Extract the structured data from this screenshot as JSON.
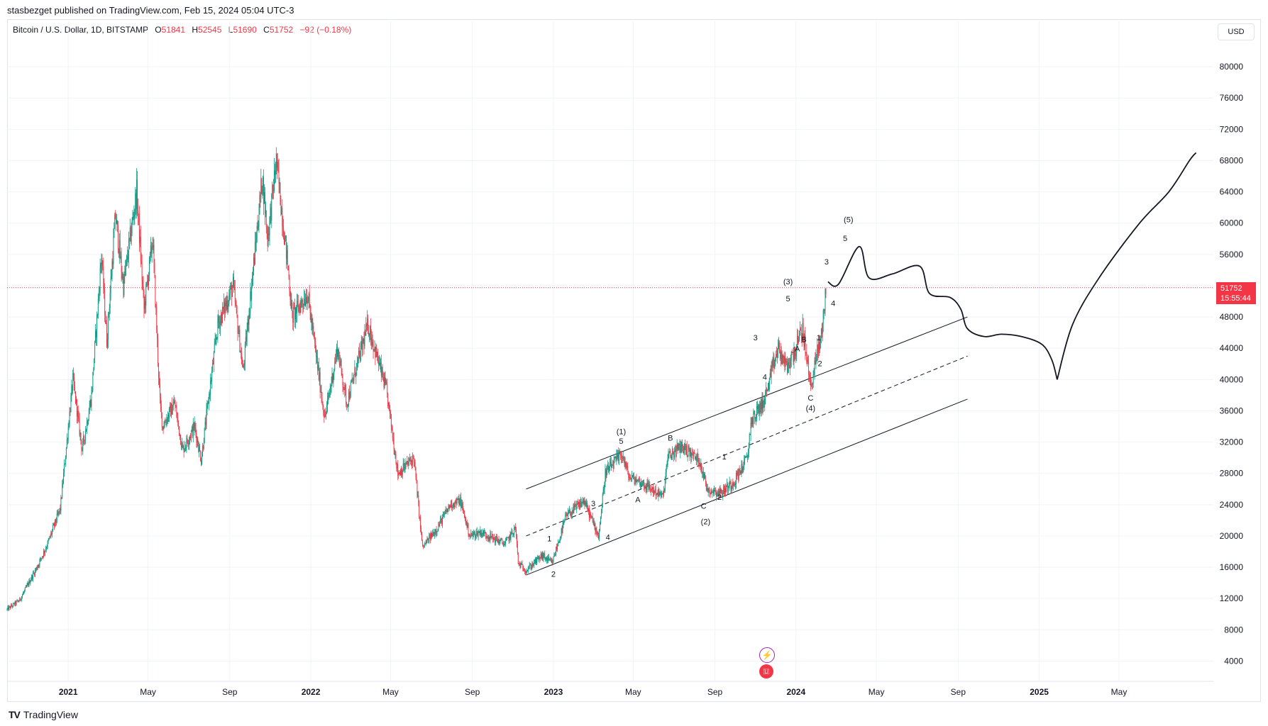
{
  "header": {
    "published": "stasbezget published on TradingView.com, Feb 15, 2024 05:04 UTC-3"
  },
  "legend": {
    "symbol": "Bitcoin / U.S. Dollar, 1D, BITSTAMP",
    "o_label": "O",
    "o_value": "51841",
    "h_label": "H",
    "h_value": "52545",
    "l_label": "L",
    "l_value": "51690",
    "c_label": "C",
    "c_value": "51752",
    "change": "−92 (−0.18%)"
  },
  "currency": "USD",
  "price_badge": {
    "price": "51752",
    "countdown": "15:55:44",
    "color": "#f23645"
  },
  "footer": {
    "brand": "TradingView"
  },
  "colors": {
    "up": "#089981",
    "down": "#f23645",
    "grid": "#f0f3fa",
    "line": "#131722"
  },
  "chart_data": {
    "type": "candlestick",
    "y_ticks": [
      4000,
      8000,
      12000,
      16000,
      20000,
      24000,
      28000,
      32000,
      36000,
      40000,
      44000,
      48000,
      52000,
      56000,
      60000,
      64000,
      68000,
      72000,
      76000,
      80000
    ],
    "y_tick_labels": [
      "4000",
      "8000",
      "12000",
      "16000",
      "20000",
      "24000",
      "28000",
      "32000",
      "36000",
      "40000",
      "44000",
      "48000",
      "52000",
      "56000",
      "60000",
      "64000",
      "68000",
      "72000",
      "76000",
      "80000"
    ],
    "ylim": [
      1500,
      84000
    ],
    "x_ticks": [
      {
        "date": "2021-01-01",
        "label": "2021",
        "bold": true
      },
      {
        "date": "2021-05-01",
        "label": "May"
      },
      {
        "date": "2021-09-01",
        "label": "Sep"
      },
      {
        "date": "2022-01-01",
        "label": "2022",
        "bold": true
      },
      {
        "date": "2022-05-01",
        "label": "May"
      },
      {
        "date": "2022-09-01",
        "label": "Sep"
      },
      {
        "date": "2023-01-01",
        "label": "2023",
        "bold": true
      },
      {
        "date": "2023-05-01",
        "label": "May"
      },
      {
        "date": "2023-09-01",
        "label": "Sep"
      },
      {
        "date": "2024-01-01",
        "label": "2024",
        "bold": true
      },
      {
        "date": "2024-05-01",
        "label": "May"
      },
      {
        "date": "2024-09-01",
        "label": "Sep"
      },
      {
        "date": "2025-01-01",
        "label": "2025",
        "bold": true
      },
      {
        "date": "2025-05-01",
        "label": "May"
      }
    ],
    "price_keypoints": [
      [
        "2020-10-01",
        10600
      ],
      [
        "2020-10-20",
        11800
      ],
      [
        "2020-11-15",
        16000
      ],
      [
        "2020-12-01",
        19000
      ],
      [
        "2020-12-20",
        23500
      ],
      [
        "2021-01-08",
        40000
      ],
      [
        "2021-01-22",
        31000
      ],
      [
        "2021-02-05",
        38000
      ],
      [
        "2021-02-20",
        56000
      ],
      [
        "2021-02-28",
        45000
      ],
      [
        "2021-03-13",
        61000
      ],
      [
        "2021-03-25",
        52000
      ],
      [
        "2021-04-14",
        64000
      ],
      [
        "2021-04-25",
        49000
      ],
      [
        "2021-05-08",
        58000
      ],
      [
        "2021-05-19",
        37000
      ],
      [
        "2021-05-23",
        34000
      ],
      [
        "2021-06-10",
        37000
      ],
      [
        "2021-06-22",
        31000
      ],
      [
        "2021-07-10",
        34000
      ],
      [
        "2021-07-20",
        29800
      ],
      [
        "2021-08-14",
        47000
      ],
      [
        "2021-09-06",
        52000
      ],
      [
        "2021-09-21",
        41000
      ],
      [
        "2021-10-20",
        66000
      ],
      [
        "2021-10-28",
        58000
      ],
      [
        "2021-11-10",
        68000
      ],
      [
        "2021-11-28",
        54000
      ],
      [
        "2021-12-04",
        48000
      ],
      [
        "2021-12-27",
        51000
      ],
      [
        "2022-01-22",
        35000
      ],
      [
        "2022-02-10",
        44000
      ],
      [
        "2022-02-24",
        37000
      ],
      [
        "2022-03-28",
        47000
      ],
      [
        "2022-04-25",
        38500
      ],
      [
        "2022-05-12",
        28000
      ],
      [
        "2022-06-05",
        30000
      ],
      [
        "2022-06-18",
        18500
      ],
      [
        "2022-07-10",
        21000
      ],
      [
        "2022-07-30",
        24000
      ],
      [
        "2022-08-14",
        24500
      ],
      [
        "2022-08-28",
        20000
      ],
      [
        "2022-09-13",
        20500
      ],
      [
        "2022-10-20",
        19000
      ],
      [
        "2022-11-05",
        21000
      ],
      [
        "2022-11-09",
        16500
      ],
      [
        "2022-11-21",
        15600
      ],
      [
        "2022-12-15",
        17500
      ],
      [
        "2022-12-30",
        16500
      ],
      [
        "2023-01-20",
        22500
      ],
      [
        "2023-02-16",
        24500
      ],
      [
        "2023-03-10",
        20000
      ],
      [
        "2023-03-20",
        28000
      ],
      [
        "2023-04-14",
        30500
      ],
      [
        "2023-04-25",
        27500
      ],
      [
        "2023-05-10",
        27000
      ],
      [
        "2023-06-15",
        25000
      ],
      [
        "2023-06-22",
        30000
      ],
      [
        "2023-07-13",
        31500
      ],
      [
        "2023-08-10",
        29500
      ],
      [
        "2023-08-20",
        26000
      ],
      [
        "2023-09-10",
        25500
      ],
      [
        "2023-09-30",
        27000
      ],
      [
        "2023-10-20",
        30000
      ],
      [
        "2023-10-25",
        34500
      ],
      [
        "2023-11-15",
        37500
      ],
      [
        "2023-12-05",
        44000
      ],
      [
        "2023-12-18",
        41500
      ],
      [
        "2024-01-01",
        44000
      ],
      [
        "2024-01-11",
        46500
      ],
      [
        "2024-01-23",
        39000
      ],
      [
        "2024-02-01",
        43000
      ],
      [
        "2024-02-08",
        45500
      ],
      [
        "2024-02-15",
        51752
      ]
    ],
    "current_price": 51752,
    "channel": {
      "upper": [
        [
          "2022-11-21",
          26000
        ],
        [
          "2024-09-15",
          48000
        ]
      ],
      "middle": [
        [
          "2022-11-21",
          20000
        ],
        [
          "2024-09-15",
          43000
        ]
      ],
      "lower": [
        [
          "2022-11-21",
          15000
        ],
        [
          "2024-09-15",
          37500
        ]
      ]
    },
    "projection": [
      [
        "2024-02-18",
        52500
      ],
      [
        "2024-03-05",
        52200
      ],
      [
        "2024-04-05",
        57000
      ],
      [
        "2024-04-20",
        53000
      ],
      [
        "2024-05-25",
        53500
      ],
      [
        "2024-07-05",
        54500
      ],
      [
        "2024-07-20",
        51000
      ],
      [
        "2024-08-20",
        50500
      ],
      [
        "2024-09-05",
        49000
      ],
      [
        "2024-09-15",
        46500
      ],
      [
        "2024-10-10",
        45500
      ],
      [
        "2024-11-05",
        45800
      ],
      [
        "2024-12-05",
        45500
      ],
      [
        "2025-01-05",
        44500
      ],
      [
        "2025-01-20",
        42500
      ],
      [
        "2025-01-28",
        40000
      ]
    ],
    "projection2": [
      [
        "2025-01-28",
        40000
      ],
      [
        "2025-02-20",
        47000
      ],
      [
        "2025-04-01",
        53000
      ],
      [
        "2025-06-01",
        60000
      ],
      [
        "2025-07-15",
        64000
      ],
      [
        "2025-08-15",
        68000
      ],
      [
        "2025-08-25",
        69000
      ]
    ],
    "wave_labels": [
      {
        "date": "2022-12-26",
        "price": 19300,
        "text": "1"
      },
      {
        "date": "2023-01-01",
        "price": 14800,
        "text": "2"
      },
      {
        "date": "2023-03-02",
        "price": 23800,
        "text": "3"
      },
      {
        "date": "2023-03-24",
        "price": 19500,
        "text": "4"
      },
      {
        "date": "2023-04-13",
        "price": 31800,
        "text": "5"
      },
      {
        "date": "2023-04-13",
        "price": 33000,
        "text": "(1)"
      },
      {
        "date": "2023-05-08",
        "price": 24300,
        "text": "A"
      },
      {
        "date": "2023-06-26",
        "price": 32200,
        "text": "B"
      },
      {
        "date": "2023-08-15",
        "price": 23500,
        "text": "C"
      },
      {
        "date": "2023-08-18",
        "price": 21500,
        "text": "(2)"
      },
      {
        "date": "2023-09-08",
        "price": 24600,
        "text": "2"
      },
      {
        "date": "2023-09-15",
        "price": 29800,
        "text": "1"
      },
      {
        "date": "2023-11-01",
        "price": 45000,
        "text": "3"
      },
      {
        "date": "2023-11-15",
        "price": 40000,
        "text": "4"
      },
      {
        "date": "2023-12-20",
        "price": 50000,
        "text": "5"
      },
      {
        "date": "2023-12-20",
        "price": 52200,
        "text": "(3)"
      },
      {
        "date": "2024-01-03",
        "price": 43600,
        "text": "A"
      },
      {
        "date": "2024-01-13",
        "price": 44800,
        "text": "B"
      },
      {
        "date": "2024-01-23",
        "price": 37300,
        "text": "C"
      },
      {
        "date": "2024-01-23",
        "price": 36000,
        "text": "(4)"
      },
      {
        "date": "2024-02-04",
        "price": 45000,
        "text": "1"
      },
      {
        "date": "2024-02-06",
        "price": 41700,
        "text": "2"
      },
      {
        "date": "2024-02-16",
        "price": 54700,
        "text": "3"
      },
      {
        "date": "2024-02-26",
        "price": 49400,
        "text": "4"
      },
      {
        "date": "2024-03-15",
        "price": 57700,
        "text": "5"
      },
      {
        "date": "2024-03-20",
        "price": 60100,
        "text": "(5)"
      }
    ]
  }
}
